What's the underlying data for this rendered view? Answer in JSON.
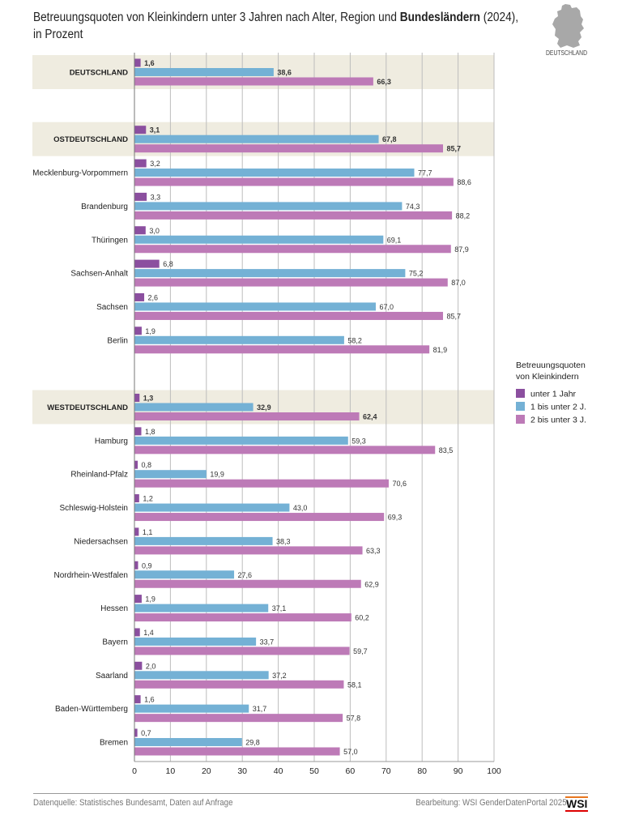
{
  "title": {
    "part1": "Betreuungsquoten von Kleinkindern unter 3 Jahren nach Alter, Region und ",
    "bold": "Bundesländern",
    "part2": " (2024),",
    "line2": "in Prozent"
  },
  "map_label": "DEUTSCHLAND",
  "colors": {
    "unter1": "#8b4f9f",
    "1bis2": "#74b1d5",
    "2bis3": "#bd7ab7",
    "band": "#efece0",
    "grid": "#bdbdbd"
  },
  "chart_data": {
    "type": "bar",
    "orientation": "horizontal",
    "xlim": [
      0,
      100
    ],
    "xticks": [
      0,
      10,
      20,
      30,
      40,
      50,
      60,
      70,
      80,
      90,
      100
    ],
    "grid": true,
    "legend_placement": "right",
    "legend_title": [
      "Betreuungsquoten",
      "von Kleinkindern"
    ],
    "series_names": [
      "unter 1 Jahr",
      "1 bis unter 2 J.",
      "2 bis unter 3 J."
    ],
    "rows": [
      {
        "label": "DEUTSCHLAND",
        "aggregate": true,
        "values": [
          1.6,
          38.6,
          66.3
        ],
        "labels": [
          "1,6",
          "38,6",
          "66,3"
        ]
      },
      {
        "gap": true
      },
      {
        "label": "OSTDEUTSCHLAND",
        "aggregate": true,
        "values": [
          3.1,
          67.8,
          85.7
        ],
        "labels": [
          "3,1",
          "67,8",
          "85,7"
        ]
      },
      {
        "label": "Mecklenburg-Vorpommern",
        "values": [
          3.2,
          77.7,
          88.6
        ],
        "labels": [
          "3,2",
          "77,7",
          "88,6"
        ]
      },
      {
        "label": "Brandenburg",
        "values": [
          3.3,
          74.3,
          88.2
        ],
        "labels": [
          "3,3",
          "74,3",
          "88,2"
        ]
      },
      {
        "label": "Thüringen",
        "values": [
          3.0,
          69.1,
          87.9
        ],
        "labels": [
          "3,0",
          "69,1",
          "87,9"
        ]
      },
      {
        "label": "Sachsen-Anhalt",
        "values": [
          6.8,
          75.2,
          87.0
        ],
        "labels": [
          "6,8",
          "75,2",
          "87,0"
        ]
      },
      {
        "label": "Sachsen",
        "values": [
          2.6,
          67.0,
          85.7
        ],
        "labels": [
          "2,6",
          "67,0",
          "85,7"
        ]
      },
      {
        "label": "Berlin",
        "values": [
          1.9,
          58.2,
          81.9
        ],
        "labels": [
          "1,9",
          "58,2",
          "81,9"
        ]
      },
      {
        "gap": true
      },
      {
        "label": "WESTDEUTSCHLAND",
        "aggregate": true,
        "values": [
          1.3,
          32.9,
          62.4
        ],
        "labels": [
          "1,3",
          "32,9",
          "62,4"
        ]
      },
      {
        "label": "Hamburg",
        "values": [
          1.8,
          59.3,
          83.5
        ],
        "labels": [
          "1,8",
          "59,3",
          "83,5"
        ]
      },
      {
        "label": "Rheinland-Pfalz",
        "values": [
          0.8,
          19.9,
          70.6
        ],
        "labels": [
          "0,8",
          "19,9",
          "70,6"
        ]
      },
      {
        "label": "Schleswig-Holstein",
        "values": [
          1.2,
          43.0,
          69.3
        ],
        "labels": [
          "1,2",
          "43,0",
          "69,3"
        ]
      },
      {
        "label": "Niedersachsen",
        "values": [
          1.1,
          38.3,
          63.3
        ],
        "labels": [
          "1,1",
          "38,3",
          "63,3"
        ]
      },
      {
        "label": "Nordrhein-Westfalen",
        "values": [
          0.9,
          27.6,
          62.9
        ],
        "labels": [
          "0,9",
          "27,6",
          "62,9"
        ]
      },
      {
        "label": "Hessen",
        "values": [
          1.9,
          37.1,
          60.2
        ],
        "labels": [
          "1,9",
          "37,1",
          "60,2"
        ]
      },
      {
        "label": "Bayern",
        "values": [
          1.4,
          33.7,
          59.7
        ],
        "labels": [
          "1,4",
          "33,7",
          "59,7"
        ]
      },
      {
        "label": "Saarland",
        "values": [
          2.0,
          37.2,
          58.1
        ],
        "labels": [
          "2,0",
          "37,2",
          "58,1"
        ]
      },
      {
        "label": "Baden-Württemberg",
        "values": [
          1.6,
          31.7,
          57.8
        ],
        "labels": [
          "1,6",
          "31,7",
          "57,8"
        ]
      },
      {
        "label": "Bremen",
        "values": [
          0.7,
          29.8,
          57.0
        ],
        "labels": [
          "0,7",
          "29,8",
          "57,0"
        ]
      }
    ]
  },
  "footer": {
    "source": "Datenquelle: Statistisches Bundesamt, Daten auf Anfrage",
    "credit": "Bearbeitung: WSI GenderDatenPortal 2025",
    "logo": "WSI"
  }
}
